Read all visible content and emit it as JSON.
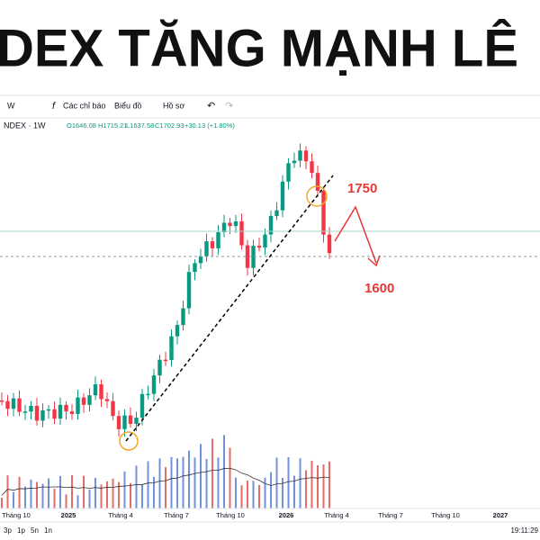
{
  "header": {
    "title": "DEX TĂNG MẠNH LÊ"
  },
  "toolbar": {
    "items": [
      "W",
      "Các chỉ báo",
      "Biểu đồ",
      "Hồ sơ"
    ]
  },
  "legend": {
    "symbol": "NDEX · 1W",
    "open": "O1646.08",
    "high": "H1715.21",
    "low": "L1637.58",
    "close": "C1702.93",
    "change": "+30.13 (+1.80%)"
  },
  "annotations": [
    "1750",
    "1600"
  ],
  "x_axis": [
    "Tháng 10",
    "2025",
    "Tháng 4",
    "Tháng 7",
    "Tháng 10",
    "2026",
    "Tháng 4",
    "Tháng 7",
    "Tháng 10",
    "2027"
  ],
  "footer": {
    "ranges": [
      "3p",
      "1p",
      "5n",
      "1n"
    ],
    "time": "19:11:29"
  }
}
